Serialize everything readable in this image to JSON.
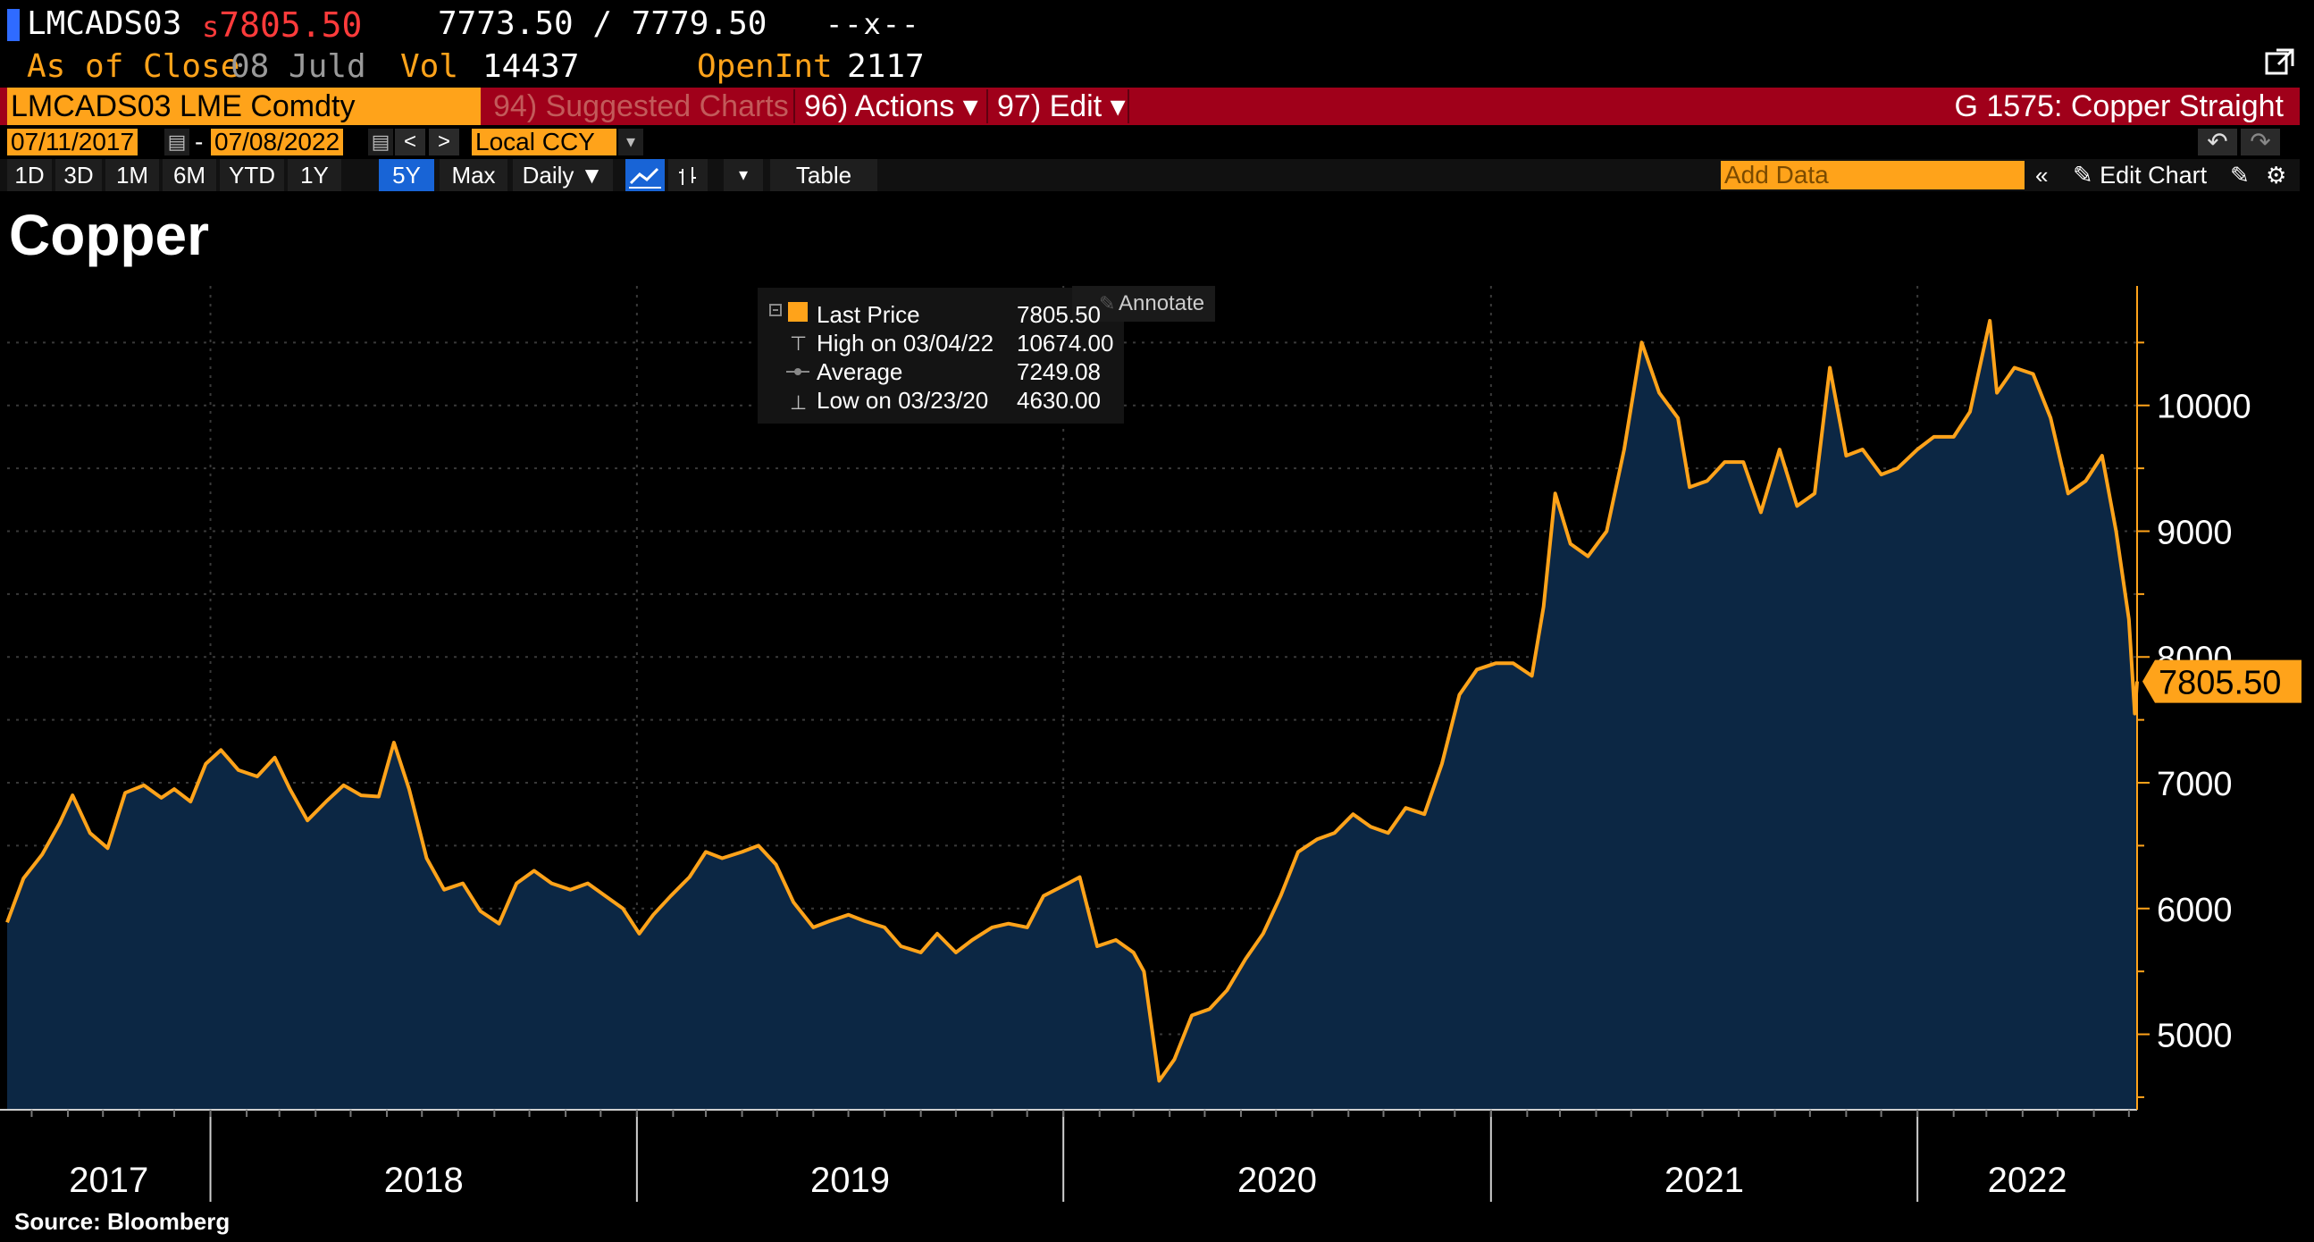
{
  "header": {
    "ticker": "LMCADS03",
    "last_prefix": "s",
    "last_price": "7805.50",
    "bid_ask": "7773.50 / 7779.50",
    "change": "--x--",
    "as_of_label": "As of Close",
    "as_of_date": "08 Juld",
    "vol_label": "Vol",
    "vol_value": "14437",
    "openint_label": "OpenInt",
    "openint_value": "2117"
  },
  "menubar": {
    "security": "LMCADS03 LME Comdty",
    "suggested": "94) Suggested Charts",
    "actions": "96) Actions ▾",
    "edit": "97) Edit ▾",
    "title": "G 1575: Copper Straight"
  },
  "daterow": {
    "start": "07/11/2017",
    "dash": "-",
    "end": "07/08/2022",
    "currency": "Local CCY"
  },
  "toolbar": {
    "periods": [
      "1D",
      "3D",
      "1M",
      "6M",
      "YTD",
      "1Y",
      "5Y",
      "Max"
    ],
    "active_period": "5Y",
    "frequency": "Daily ▼",
    "table": "Table",
    "add_data_placeholder": "Add Data",
    "edit_chart": "Edit Chart"
  },
  "chart_title": "Copper",
  "source": "Source: Bloomberg",
  "legend": {
    "annotate": "Annotate",
    "rows": [
      {
        "label": "Last Price",
        "value": "7805.50"
      },
      {
        "label": "High on 03/04/22",
        "value": "10674.00"
      },
      {
        "label": "Average",
        "value": "7249.08"
      },
      {
        "label": "Low on 03/23/20",
        "value": "4630.00"
      }
    ]
  },
  "colors": {
    "line": "#ffa31a",
    "fill": "#0c2744",
    "background": "#000000",
    "last_price_tag": "#ffa31a"
  },
  "chart_data": {
    "type": "area",
    "title": "Copper",
    "xlabel": "",
    "ylabel": "",
    "x_tick_labels": [
      "2017",
      "2018",
      "2019",
      "2020",
      "2021",
      "2022"
    ],
    "y_ticks": [
      5000,
      6000,
      7000,
      8000,
      9000,
      10000
    ],
    "ylim": [
      4400,
      10950
    ],
    "xlim": [
      "2017-07-11",
      "2022-07-08"
    ],
    "grid": true,
    "last_value_label": "7805.50",
    "series": [
      {
        "values": [
          [
            "2017-07-11",
            5890
          ],
          [
            "2017-07-25",
            6240
          ],
          [
            "2017-08-10",
            6430
          ],
          [
            "2017-08-25",
            6680
          ],
          [
            "2017-09-05",
            6900
          ],
          [
            "2017-09-20",
            6600
          ],
          [
            "2017-10-05",
            6480
          ],
          [
            "2017-10-20",
            6920
          ],
          [
            "2017-11-05",
            6980
          ],
          [
            "2017-11-20",
            6880
          ],
          [
            "2017-12-01",
            6950
          ],
          [
            "2017-12-15",
            6850
          ],
          [
            "2017-12-28",
            7150
          ],
          [
            "2018-01-10",
            7260
          ],
          [
            "2018-01-25",
            7100
          ],
          [
            "2018-02-10",
            7050
          ],
          [
            "2018-02-25",
            7200
          ],
          [
            "2018-03-10",
            6950
          ],
          [
            "2018-03-25",
            6700
          ],
          [
            "2018-04-10",
            6850
          ],
          [
            "2018-04-25",
            6980
          ],
          [
            "2018-05-10",
            6900
          ],
          [
            "2018-05-25",
            6890
          ],
          [
            "2018-06-07",
            7320
          ],
          [
            "2018-06-20",
            6950
          ],
          [
            "2018-07-05",
            6400
          ],
          [
            "2018-07-20",
            6150
          ],
          [
            "2018-08-05",
            6200
          ],
          [
            "2018-08-20",
            5980
          ],
          [
            "2018-09-05",
            5880
          ],
          [
            "2018-09-20",
            6200
          ],
          [
            "2018-10-05",
            6300
          ],
          [
            "2018-10-20",
            6200
          ],
          [
            "2018-11-05",
            6150
          ],
          [
            "2018-11-20",
            6200
          ],
          [
            "2018-12-05",
            6100
          ],
          [
            "2018-12-20",
            6000
          ],
          [
            "2019-01-03",
            5800
          ],
          [
            "2019-01-15",
            5950
          ],
          [
            "2019-01-30",
            6100
          ],
          [
            "2019-02-15",
            6250
          ],
          [
            "2019-03-01",
            6450
          ],
          [
            "2019-03-15",
            6400
          ],
          [
            "2019-04-01",
            6450
          ],
          [
            "2019-04-15",
            6500
          ],
          [
            "2019-04-30",
            6350
          ],
          [
            "2019-05-15",
            6050
          ],
          [
            "2019-06-01",
            5850
          ],
          [
            "2019-06-15",
            5900
          ],
          [
            "2019-07-01",
            5950
          ],
          [
            "2019-07-15",
            5900
          ],
          [
            "2019-08-01",
            5850
          ],
          [
            "2019-08-15",
            5700
          ],
          [
            "2019-09-01",
            5650
          ],
          [
            "2019-09-15",
            5800
          ],
          [
            "2019-10-01",
            5650
          ],
          [
            "2019-10-15",
            5750
          ],
          [
            "2019-11-01",
            5850
          ],
          [
            "2019-11-15",
            5880
          ],
          [
            "2019-12-01",
            5850
          ],
          [
            "2019-12-15",
            6100
          ],
          [
            "2020-01-05",
            6200
          ],
          [
            "2020-01-15",
            6250
          ],
          [
            "2020-01-30",
            5700
          ],
          [
            "2020-02-15",
            5750
          ],
          [
            "2020-03-01",
            5650
          ],
          [
            "2020-03-10",
            5500
          ],
          [
            "2020-03-23",
            4630
          ],
          [
            "2020-04-05",
            4800
          ],
          [
            "2020-04-20",
            5150
          ],
          [
            "2020-05-05",
            5200
          ],
          [
            "2020-05-20",
            5350
          ],
          [
            "2020-06-05",
            5600
          ],
          [
            "2020-06-20",
            5800
          ],
          [
            "2020-07-05",
            6100
          ],
          [
            "2020-07-20",
            6450
          ],
          [
            "2020-08-05",
            6550
          ],
          [
            "2020-08-20",
            6600
          ],
          [
            "2020-09-05",
            6750
          ],
          [
            "2020-09-20",
            6650
          ],
          [
            "2020-10-05",
            6600
          ],
          [
            "2020-10-20",
            6800
          ],
          [
            "2020-11-05",
            6750
          ],
          [
            "2020-11-20",
            7150
          ],
          [
            "2020-12-05",
            7700
          ],
          [
            "2020-12-20",
            7900
          ],
          [
            "2021-01-05",
            7950
          ],
          [
            "2021-01-20",
            7950
          ],
          [
            "2021-02-05",
            7850
          ],
          [
            "2021-02-15",
            8400
          ],
          [
            "2021-02-25",
            9300
          ],
          [
            "2021-03-10",
            8900
          ],
          [
            "2021-03-25",
            8800
          ],
          [
            "2021-04-10",
            9000
          ],
          [
            "2021-04-25",
            9650
          ],
          [
            "2021-05-10",
            10500
          ],
          [
            "2021-05-25",
            10100
          ],
          [
            "2021-06-10",
            9900
          ],
          [
            "2021-06-20",
            9350
          ],
          [
            "2021-07-05",
            9400
          ],
          [
            "2021-07-20",
            9550
          ],
          [
            "2021-08-05",
            9550
          ],
          [
            "2021-08-20",
            9150
          ],
          [
            "2021-09-05",
            9650
          ],
          [
            "2021-09-20",
            9200
          ],
          [
            "2021-10-05",
            9300
          ],
          [
            "2021-10-18",
            10300
          ],
          [
            "2021-11-01",
            9600
          ],
          [
            "2021-11-15",
            9650
          ],
          [
            "2021-12-01",
            9450
          ],
          [
            "2021-12-15",
            9500
          ],
          [
            "2022-01-01",
            9650
          ],
          [
            "2022-01-15",
            9750
          ],
          [
            "2022-02-01",
            9750
          ],
          [
            "2022-02-15",
            9950
          ],
          [
            "2022-03-04",
            10674
          ],
          [
            "2022-03-10",
            10100
          ],
          [
            "2022-03-25",
            10300
          ],
          [
            "2022-04-10",
            10250
          ],
          [
            "2022-04-25",
            9900
          ],
          [
            "2022-05-10",
            9300
          ],
          [
            "2022-05-25",
            9400
          ],
          [
            "2022-06-08",
            9600
          ],
          [
            "2022-06-20",
            9000
          ],
          [
            "2022-07-01",
            8300
          ],
          [
            "2022-07-06",
            7550
          ],
          [
            "2022-07-08",
            7805.5
          ]
        ]
      }
    ]
  }
}
